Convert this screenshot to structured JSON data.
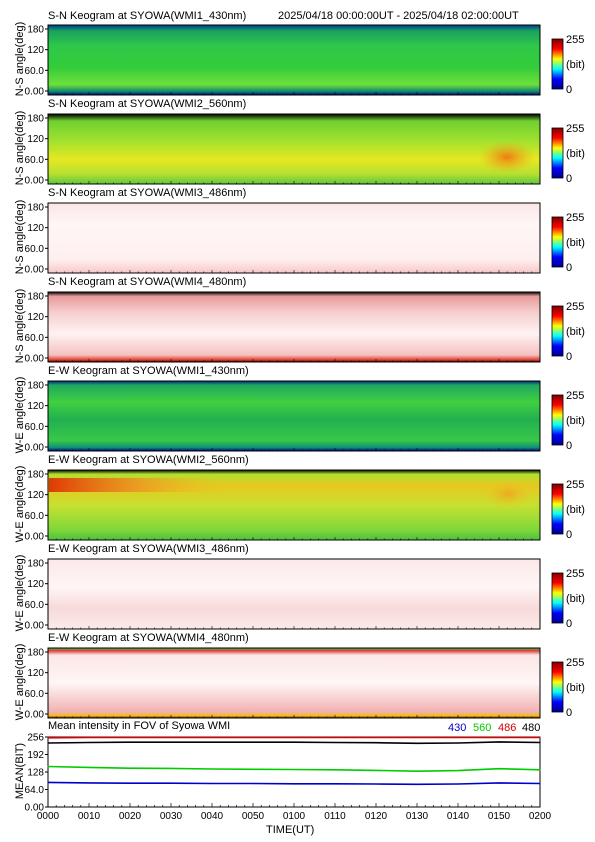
{
  "header": {
    "range": "2025/04/18 00:00:00UT - 2025/04/18 02:00:00UT"
  },
  "colorbar": {
    "top": "255",
    "mid": "(bit)",
    "bottom": "0",
    "stops": [
      "#00008f",
      "#0000ff",
      "#00ffff",
      "#ffff00",
      "#ff0000",
      "#800000"
    ]
  },
  "panels": [
    {
      "title": "S-N Keogram at SYOWA(WMI1_430nm)",
      "ylabel": "N-S angle(deg)",
      "yticks": [
        "180",
        "120",
        "60.0",
        "0.00"
      ]
    },
    {
      "title": "S-N Keogram at SYOWA(WMI2_560nm)",
      "ylabel": "N-S angle(deg)",
      "yticks": [
        "180",
        "120",
        "60.0",
        "0.00"
      ]
    },
    {
      "title": "S-N Keogram at SYOWA(WMI3_486nm)",
      "ylabel": "N-S angle(deg)",
      "yticks": [
        "180",
        "120",
        "60.0",
        "0.00"
      ]
    },
    {
      "title": "S-N Keogram at SYOWA(WMI4_480nm)",
      "ylabel": "N-S angle(deg)",
      "yticks": [
        "180",
        "120",
        "60.0",
        "0.00"
      ]
    },
    {
      "title": "E-W Keogram at SYOWA(WMI1_430nm)",
      "ylabel": "W-E angle(deg)",
      "yticks": [
        "180",
        "120",
        "60.0",
        "0.00"
      ]
    },
    {
      "title": "E-W Keogram at SYOWA(WMI2_560nm)",
      "ylabel": "W-E angle(deg)",
      "yticks": [
        "180",
        "120",
        "60.0",
        "0.00"
      ]
    },
    {
      "title": "E-W Keogram at SYOWA(WMI3_486nm)",
      "ylabel": "W-E angle(deg)",
      "yticks": [
        "180",
        "120",
        "60.0",
        "0.00"
      ]
    },
    {
      "title": "E-W Keogram at SYOWA(WMI4_480nm)",
      "ylabel": "W-E angle(deg)",
      "yticks": [
        "180",
        "120",
        "60.0",
        "0.00"
      ]
    }
  ],
  "mean_panel": {
    "title": "Mean intensity in FOV of Syowa WMI",
    "ylabel": "MEAN(BIT)",
    "yticks": [
      "256",
      "192",
      "128",
      "64.0",
      "0.00"
    ],
    "legend": [
      {
        "label": "430",
        "color": "#0000cc"
      },
      {
        "label": "560",
        "color": "#00cc00"
      },
      {
        "label": "486",
        "color": "#dd0000"
      },
      {
        "label": "480",
        "color": "#000000"
      }
    ]
  },
  "xaxis": {
    "label": "TIME(UT)",
    "ticks": [
      "0000",
      "0010",
      "0020",
      "0030",
      "0040",
      "0050",
      "0100",
      "0110",
      "0120",
      "0130",
      "0140",
      "0150",
      "0200"
    ]
  },
  "chart_data": {
    "type": "line",
    "title": "Mean intensity in FOV of Syowa WMI",
    "xlabel": "TIME(UT)",
    "ylabel": "MEAN(BIT)",
    "ylim": [
      0,
      256
    ],
    "x": [
      "0000",
      "0010",
      "0020",
      "0030",
      "0040",
      "0050",
      "0100",
      "0110",
      "0120",
      "0130",
      "0140",
      "0150",
      "0200"
    ],
    "series": [
      {
        "name": "430",
        "values": [
          90,
          88,
          87,
          87,
          86,
          86,
          85,
          85,
          84,
          83,
          84,
          88,
          86
        ]
      },
      {
        "name": "560",
        "values": [
          148,
          145,
          142,
          141,
          139,
          138,
          137,
          136,
          134,
          131,
          133,
          140,
          136
        ]
      },
      {
        "name": "486",
        "values": [
          253,
          254,
          254,
          254,
          254,
          254,
          254,
          254,
          254,
          254,
          254,
          254,
          254
        ]
      },
      {
        "name": "480",
        "values": [
          234,
          236,
          237,
          237,
          237,
          237,
          237,
          236,
          235,
          233,
          234,
          238,
          236
        ]
      }
    ]
  }
}
